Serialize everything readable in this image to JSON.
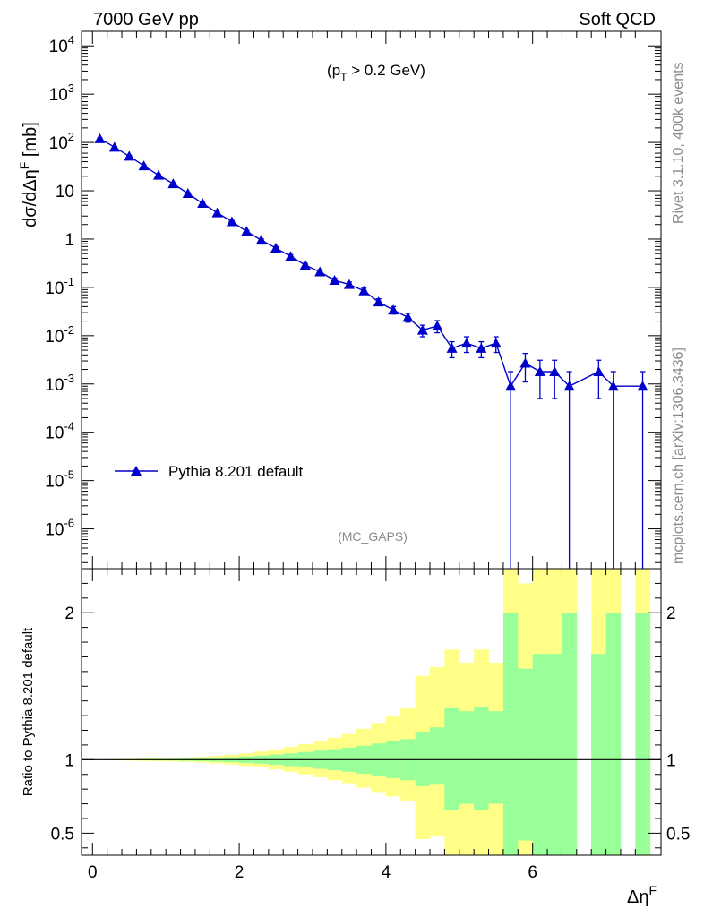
{
  "header": {
    "left": "7000 GeV pp",
    "right": "Soft QCD"
  },
  "side_labels": {
    "rivet": "Rivet 3.1.10,  400k events",
    "mcplots": "mcplots.cern.ch [arXiv:1306.3436]"
  },
  "colors": {
    "mc": "#0000cc",
    "band_inner": "#99ff99",
    "band_outer": "#ffff88"
  },
  "chart_data": [
    {
      "type": "line",
      "panel": "main",
      "cut_label": {
        "base": "(p",
        "sub": "T",
        "rest": " > 0.2 GeV)"
      },
      "analysis_label": "(MC_GAPS)",
      "ylabel": "dσ/dΔη^F [mb]",
      "yscale": "log",
      "ylim": [
        1.5e-07,
        20000.0
      ],
      "xlim": [
        -0.15,
        7.75
      ],
      "y_ticks": [
        "10^4",
        "10^3",
        "10^2",
        "10",
        "1",
        "10^-1",
        "10^-2",
        "10^-3",
        "10^-4",
        "10^-5",
        "10^-6"
      ],
      "legend": {
        "label": "Pythia 8.201 default",
        "position": "lower-left"
      },
      "series": [
        {
          "name": "Pythia 8.201 default",
          "marker": "triangle",
          "x": [
            0.1,
            0.3,
            0.5,
            0.7,
            0.9,
            1.1,
            1.3,
            1.5,
            1.7,
            1.9,
            2.1,
            2.3,
            2.5,
            2.7,
            2.9,
            3.1,
            3.3,
            3.5,
            3.7,
            3.9,
            4.1,
            4.3,
            4.5,
            4.7,
            4.9,
            5.1,
            5.3,
            5.5,
            5.7,
            5.9,
            6.1,
            6.3,
            6.5,
            6.9,
            7.1,
            7.5
          ],
          "y": [
            120,
            80,
            52,
            33,
            21,
            14,
            8.8,
            5.5,
            3.5,
            2.3,
            1.45,
            0.95,
            0.65,
            0.44,
            0.29,
            0.21,
            0.14,
            0.115,
            0.085,
            0.05,
            0.034,
            0.024,
            0.013,
            0.016,
            0.0055,
            0.007,
            0.0055,
            0.007,
            0.0009,
            0.0027,
            0.0018,
            0.0018,
            0.0009,
            0.0018,
            0.0009,
            0.0009
          ],
          "y_err_up": [
            5,
            3,
            2,
            1.2,
            0.8,
            0.5,
            0.35,
            0.25,
            0.18,
            0.12,
            0.08,
            0.06,
            0.045,
            0.035,
            0.025,
            0.02,
            0.016,
            0.014,
            0.011,
            0.008,
            0.006,
            0.005,
            0.0035,
            0.0045,
            0.002,
            0.0025,
            0.002,
            0.0025,
            0.0009,
            0.0016,
            0.0013,
            0.0013,
            0.0009,
            0.0013,
            0.0009,
            0.0009
          ],
          "y_err_down": [
            5,
            3,
            2,
            1.2,
            0.8,
            0.5,
            0.35,
            0.25,
            0.18,
            0.12,
            0.08,
            0.06,
            0.045,
            0.035,
            0.025,
            0.02,
            0.016,
            0.014,
            0.011,
            0.008,
            0.006,
            0.005,
            0.0035,
            0.0045,
            0.002,
            0.0025,
            0.002,
            0.0025,
            0.0009,
            0.0016,
            0.0013,
            0.0013,
            0.0009,
            0.0013,
            0.0009,
            0.0009
          ]
        }
      ]
    },
    {
      "type": "area",
      "panel": "ratio",
      "ylabel": "Ratio to Pythia 8.201 default",
      "xlabel": "Δη^F",
      "ylim": [
        0.35,
        2.3
      ],
      "xlim": [
        -0.15,
        7.75
      ],
      "x_ticks": [
        "0",
        "2",
        "4",
        "6"
      ],
      "y_ticks": [
        "0.5",
        "1",
        "2"
      ],
      "reference_line": 1,
      "bin_width": 0.2,
      "bin_centers": [
        0.1,
        0.3,
        0.5,
        0.7,
        0.9,
        1.1,
        1.3,
        1.5,
        1.7,
        1.9,
        2.1,
        2.3,
        2.5,
        2.7,
        2.9,
        3.1,
        3.3,
        3.5,
        3.7,
        3.9,
        4.1,
        4.3,
        4.5,
        4.7,
        4.9,
        5.1,
        5.3,
        5.5,
        5.7,
        5.9,
        6.1,
        6.3,
        6.5,
        6.9,
        7.1,
        7.5
      ],
      "inner_band": {
        "lo": [
          0.999,
          0.998,
          0.997,
          0.996,
          0.995,
          0.994,
          0.992,
          0.99,
          0.987,
          0.983,
          0.978,
          0.972,
          0.965,
          0.957,
          0.948,
          0.938,
          0.928,
          0.918,
          0.905,
          0.89,
          0.875,
          0.86,
          0.82,
          0.83,
          0.66,
          0.7,
          0.66,
          0.7,
          0.001,
          0.45,
          0.33,
          0.33,
          0.001,
          0.33,
          0.001,
          0.001
        ],
        "hi": [
          1.001,
          1.002,
          1.003,
          1.004,
          1.005,
          1.006,
          1.008,
          1.01,
          1.013,
          1.017,
          1.022,
          1.028,
          1.035,
          1.043,
          1.052,
          1.062,
          1.072,
          1.082,
          1.095,
          1.11,
          1.125,
          1.14,
          1.19,
          1.22,
          1.35,
          1.33,
          1.36,
          1.33,
          2.0,
          1.62,
          1.72,
          1.72,
          2.0,
          1.72,
          2.0,
          2.0
        ]
      },
      "outer_band": {
        "lo": [
          0.998,
          0.996,
          0.994,
          0.992,
          0.99,
          0.988,
          0.985,
          0.98,
          0.975,
          0.967,
          0.958,
          0.947,
          0.934,
          0.918,
          0.9,
          0.88,
          0.86,
          0.84,
          0.81,
          0.78,
          0.75,
          0.72,
          0.46,
          0.48,
          0.001,
          0.001,
          0.001,
          0.001,
          0.001,
          0.001,
          0.001,
          0.001,
          0.001,
          0.001,
          0.001,
          0.001
        ],
        "hi": [
          1.002,
          1.004,
          1.006,
          1.008,
          1.01,
          1.012,
          1.016,
          1.02,
          1.026,
          1.034,
          1.044,
          1.056,
          1.07,
          1.087,
          1.106,
          1.128,
          1.15,
          1.175,
          1.21,
          1.25,
          1.3,
          1.35,
          1.57,
          1.63,
          1.75,
          1.66,
          1.75,
          1.66,
          3.0,
          2.2,
          3.0,
          3.0,
          3.0,
          3.0,
          3.0,
          3.0
        ]
      }
    }
  ]
}
